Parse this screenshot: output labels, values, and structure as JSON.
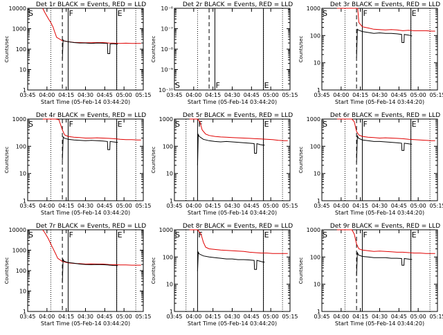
{
  "colors": {
    "events": "#000000",
    "lld": "#e00000",
    "background": "#ffffff"
  },
  "x_ticks": [
    "03:45",
    "04:00",
    "04:15",
    "04:30",
    "04:45",
    "05:00",
    "05:15"
  ],
  "xlabel": "Start Time (05-Feb-14 03:44:20)",
  "ylabel": "Counts/sec",
  "markers": {
    "s": "S",
    "f": "F",
    "e": "E"
  },
  "chart_data": [
    {
      "type": "line",
      "title": "Det 1r BLACK = Events, RED = LLD",
      "ylog": true,
      "ylim": [
        1,
        10000
      ],
      "y_ticks": [
        "1",
        "10",
        "100",
        "1000",
        "10000"
      ],
      "xlim_min": [
        0,
        100
      ],
      "series": [
        {
          "key": "lld",
          "x": [
            13,
            15,
            18,
            20,
            22,
            23,
            25,
            30,
            35,
            40,
            45,
            50,
            55,
            60,
            65,
            70,
            75,
            80,
            85,
            90,
            95,
            98
          ],
          "y": [
            10000,
            6000,
            3000,
            2000,
            1200,
            800,
            380,
            260,
            230,
            215,
            210,
            205,
            205,
            210,
            210,
            200,
            195,
            190,
            195,
            190,
            190,
            190
          ]
        },
        {
          "key": "events",
          "x": [
            30,
            30.6,
            31,
            32,
            35,
            40,
            45,
            50,
            55,
            60,
            65,
            69,
            69.3,
            71,
            71.3,
            74,
            77,
            78
          ],
          "y": [
            30,
            280,
            260,
            250,
            230,
            210,
            200,
            200,
            190,
            200,
            195,
            190,
            60,
            60,
            180,
            185,
            175,
            175
          ]
        }
      ],
      "vlines": {
        "dotted": [
          20,
          77,
          93.5
        ],
        "dashed": [
          30
        ],
        "solid": [
          35,
          77
        ]
      }
    },
    {
      "type": "line",
      "title": "Det 2r BLACK = Events, RED = LLD",
      "ylog": true,
      "ylim": [
        1e-10,
        1e-06
      ],
      "y_ticks": [
        "10⁻¹⁰",
        "10⁻⁹",
        "10⁻⁸",
        "10⁻⁷",
        "10⁻⁶"
      ],
      "xlim_min": [
        0,
        100
      ],
      "series": [],
      "vlines": {
        "dotted": [
          20,
          77,
          93.5
        ],
        "dashed": [
          30
        ],
        "solid": [
          35,
          77
        ]
      }
    },
    {
      "type": "line",
      "title": "Det 3r BLACK = Events, RED = LLD",
      "ylog": true,
      "ylim": [
        1,
        1000
      ],
      "y_ticks": [
        "1",
        "10",
        "100",
        "1000"
      ],
      "xlim_min": [
        0,
        100
      ],
      "series": [
        {
          "key": "lld",
          "x": [
            13,
            18,
            22,
            28,
            31,
            32,
            35,
            40,
            45,
            50,
            55,
            60,
            65,
            70,
            75,
            80,
            85,
            90,
            95,
            98
          ],
          "y": [
            1000,
            1000,
            1000,
            1000,
            1000,
            300,
            210,
            190,
            170,
            165,
            160,
            165,
            160,
            150,
            155,
            150,
            150,
            150,
            145,
            145
          ]
        },
        {
          "key": "events",
          "x": [
            30,
            30.7,
            31.5,
            35,
            40,
            45,
            50,
            55,
            60,
            65,
            69,
            69.3,
            71,
            71.3,
            74,
            77,
            78
          ],
          "y": [
            15,
            170,
            160,
            140,
            130,
            120,
            125,
            120,
            120,
            115,
            110,
            55,
            55,
            110,
            105,
            100,
            95
          ]
        }
      ],
      "vlines": {
        "dotted": [
          20,
          77,
          93.5
        ],
        "dashed": [
          30
        ],
        "solid": [
          35,
          77
        ]
      }
    },
    {
      "type": "line",
      "title": "Det 4r BLACK = Events, RED = LLD",
      "ylog": true,
      "ylim": [
        1,
        1000
      ],
      "y_ticks": [
        "1",
        "10",
        "100",
        "1000"
      ],
      "xlim_min": [
        0,
        100
      ],
      "series": [
        {
          "key": "lld",
          "x": [
            13,
            18,
            21,
            24,
            27,
            30,
            32,
            35,
            40,
            45,
            50,
            55,
            60,
            65,
            70,
            75,
            80,
            85,
            90,
            95,
            98
          ],
          "y": [
            1000,
            1000,
            1000,
            1000,
            950,
            400,
            260,
            230,
            215,
            210,
            200,
            200,
            205,
            200,
            195,
            190,
            180,
            175,
            175,
            170,
            170
          ]
        },
        {
          "key": "events",
          "x": [
            30,
            30.7,
            31.5,
            35,
            40,
            45,
            50,
            55,
            60,
            65,
            69,
            69.3,
            71,
            71.3,
            74,
            77,
            78
          ],
          "y": [
            30,
            220,
            200,
            180,
            170,
            165,
            160,
            165,
            160,
            155,
            150,
            75,
            75,
            150,
            145,
            140,
            140
          ]
        }
      ],
      "vlines": {
        "dotted": [
          20,
          77,
          93.5
        ],
        "dashed": [
          30
        ],
        "solid": [
          35,
          77
        ]
      }
    },
    {
      "type": "line",
      "title": "Det 5r BLACK = Events, RED = LLD",
      "ylog": true,
      "ylim": [
        1,
        1000
      ],
      "y_ticks": [
        "1",
        "10",
        "100",
        "1000"
      ],
      "xlim_min": [
        0,
        100
      ],
      "series": [
        {
          "key": "lld",
          "x": [
            13,
            18,
            20,
            22,
            24,
            27,
            30,
            35,
            40,
            45,
            50,
            55,
            60,
            65,
            70,
            75,
            80,
            85,
            90,
            95,
            98
          ],
          "y": [
            1000,
            1000,
            1000,
            800,
            400,
            280,
            250,
            230,
            220,
            215,
            210,
            205,
            200,
            195,
            190,
            185,
            180,
            175,
            165,
            160,
            160
          ]
        },
        {
          "key": "events",
          "x": [
            20,
            20.6,
            21.5,
            25,
            30,
            35,
            40,
            45,
            50,
            55,
            60,
            65,
            69,
            69.3,
            71,
            71.3,
            74,
            77,
            78
          ],
          "y": [
            20,
            270,
            230,
            180,
            160,
            150,
            145,
            150,
            145,
            140,
            135,
            130,
            125,
            55,
            55,
            125,
            115,
            110,
            110
          ]
        }
      ],
      "vlines": {
        "dotted": [
          10,
          77,
          93.5
        ],
        "dashed": [],
        "solid": [
          20,
          77
        ]
      }
    },
    {
      "type": "line",
      "title": "Det 6r BLACK = Events, RED = LLD",
      "ylog": true,
      "ylim": [
        1,
        1000
      ],
      "y_ticks": [
        "1",
        "10",
        "100",
        "1000"
      ],
      "xlim_min": [
        0,
        100
      ],
      "series": [
        {
          "key": "lld",
          "x": [
            13,
            18,
            22,
            26,
            28,
            30,
            32,
            35,
            40,
            45,
            50,
            55,
            60,
            65,
            70,
            75,
            80,
            85,
            90,
            95,
            98
          ],
          "y": [
            1000,
            1000,
            1000,
            1000,
            800,
            350,
            260,
            230,
            215,
            210,
            200,
            205,
            200,
            195,
            190,
            180,
            175,
            170,
            165,
            160,
            160
          ]
        },
        {
          "key": "events",
          "x": [
            30,
            30.7,
            31.5,
            35,
            40,
            45,
            50,
            55,
            60,
            65,
            69,
            69.3,
            71,
            71.3,
            74,
            77,
            78
          ],
          "y": [
            25,
            250,
            200,
            170,
            160,
            150,
            150,
            145,
            140,
            135,
            130,
            70,
            70,
            130,
            125,
            120,
            120
          ]
        }
      ],
      "vlines": {
        "dotted": [
          20,
          77,
          93.5
        ],
        "dashed": [
          30
        ],
        "solid": [
          35,
          77
        ]
      }
    },
    {
      "type": "line",
      "title": "Det 7r BLACK = Events, RED = LLD",
      "ylog": true,
      "ylim": [
        1,
        10000
      ],
      "y_ticks": [
        "1",
        "10",
        "100",
        "1000",
        "10000"
      ],
      "xlim_min": [
        0,
        100
      ],
      "series": [
        {
          "key": "lld",
          "x": [
            13,
            15,
            18,
            20,
            22,
            24,
            26,
            30,
            35,
            40,
            45,
            50,
            55,
            60,
            65,
            70,
            75,
            80,
            85,
            90,
            95,
            98
          ],
          "y": [
            10000,
            7000,
            3500,
            2000,
            1200,
            700,
            400,
            280,
            240,
            225,
            220,
            210,
            215,
            210,
            210,
            200,
            195,
            190,
            190,
            185,
            185,
            185
          ]
        },
        {
          "key": "events",
          "x": [
            30,
            30.6,
            31.5,
            35,
            40,
            45,
            50,
            55,
            60,
            65,
            69,
            69.3,
            71,
            71.3,
            74,
            77,
            78
          ],
          "y": [
            25,
            350,
            290,
            250,
            230,
            210,
            200,
            195,
            200,
            195,
            190,
            190,
            185,
            185,
            180,
            175,
            175
          ]
        }
      ],
      "vlines": {
        "dotted": [
          20,
          77,
          93.5
        ],
        "dashed": [
          30
        ],
        "solid": [
          35,
          77
        ]
      }
    },
    {
      "type": "line",
      "title": "Det 8r BLACK = Events, RED = LLD",
      "ylog": true,
      "ylim": [
        1,
        1000
      ],
      "y_ticks": [
        "1",
        "10",
        "100",
        "1000"
      ],
      "xlim_min": [
        0,
        100
      ],
      "series": [
        {
          "key": "lld",
          "x": [
            13,
            18,
            20,
            23,
            25,
            27,
            30,
            35,
            40,
            45,
            50,
            55,
            60,
            65,
            70,
            75,
            80,
            85,
            90,
            95,
            98
          ],
          "y": [
            1000,
            1000,
            1000,
            700,
            350,
            230,
            200,
            190,
            180,
            175,
            170,
            165,
            160,
            150,
            145,
            140,
            140,
            135,
            135,
            135,
            135
          ]
        },
        {
          "key": "events",
          "x": [
            20,
            20.6,
            21.5,
            25,
            30,
            35,
            40,
            45,
            50,
            55,
            60,
            65,
            69,
            69.3,
            71,
            71.3,
            74,
            77,
            78
          ],
          "y": [
            30,
            150,
            130,
            110,
            100,
            95,
            90,
            85,
            85,
            80,
            80,
            78,
            75,
            35,
            35,
            75,
            70,
            65,
            65
          ]
        }
      ],
      "vlines": {
        "dotted": [
          10,
          77,
          93.5
        ],
        "dashed": [],
        "solid": [
          20,
          77
        ]
      }
    },
    {
      "type": "line",
      "title": "Det 9r BLACK = Events, RED = LLD",
      "ylog": true,
      "ylim": [
        1,
        1000
      ],
      "y_ticks": [
        "1",
        "10",
        "100",
        "1000"
      ],
      "xlim_min": [
        0,
        100
      ],
      "series": [
        {
          "key": "lld",
          "x": [
            13,
            18,
            22,
            26,
            28,
            30,
            32,
            35,
            40,
            45,
            50,
            55,
            60,
            65,
            70,
            75,
            80,
            85,
            90,
            95,
            98
          ],
          "y": [
            1000,
            1000,
            1000,
            1000,
            700,
            300,
            200,
            180,
            170,
            160,
            165,
            160,
            155,
            150,
            150,
            145,
            140,
            140,
            135,
            135,
            135
          ]
        },
        {
          "key": "events",
          "x": [
            30,
            30.7,
            31.5,
            35,
            40,
            45,
            50,
            55,
            60,
            65,
            69,
            69.3,
            71,
            71.3,
            74,
            77,
            78
          ],
          "y": [
            20,
            150,
            120,
            105,
            100,
            95,
            95,
            95,
            90,
            90,
            88,
            50,
            50,
            88,
            85,
            82,
            82
          ]
        }
      ],
      "vlines": {
        "dotted": [
          20,
          77,
          93.5
        ],
        "dashed": [
          30
        ],
        "solid": [
          35,
          77
        ]
      }
    }
  ]
}
